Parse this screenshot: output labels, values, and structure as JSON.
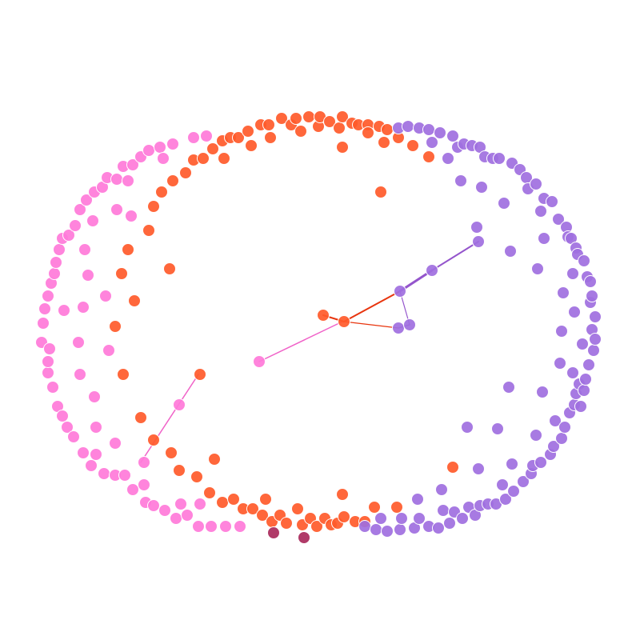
{
  "graph": {
    "groups": {
      "pink": {
        "color": "#ff7ad9"
      },
      "orange": {
        "color": "#ff5a2a"
      },
      "purple": {
        "color": "#9f6fe0"
      },
      "maroon": {
        "color": "#b03a68"
      }
    },
    "edge_colors": {
      "pink": "#f062c8",
      "orange": "#e8350e",
      "purple": "#9455cc"
    },
    "background": "#ffffff"
  }
}
